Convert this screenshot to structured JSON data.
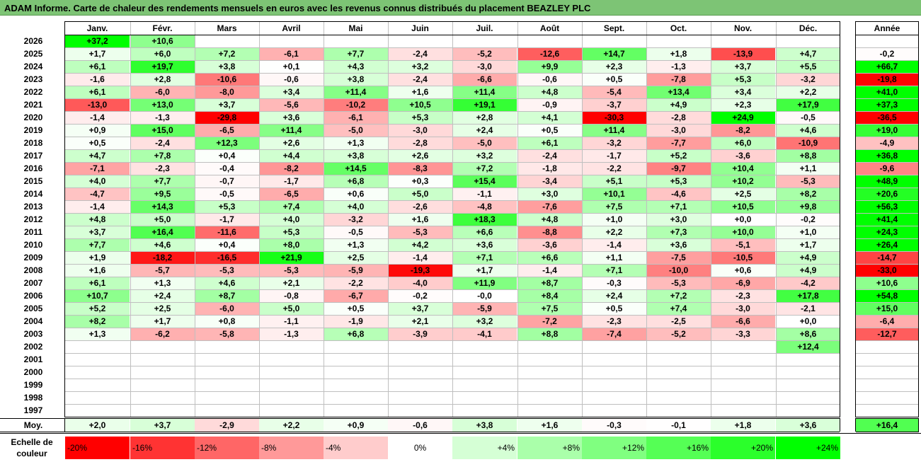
{
  "title": "ADAM Informe. Carte de chaleur des rendements mensuels en euros avec les revenus connus distribués du placement BEAZLEY PLC",
  "chart_data": {
    "type": "heatmap",
    "columns": [
      "Janv.",
      "Févr.",
      "Mars",
      "Avril",
      "Mai",
      "Juin",
      "Juil.",
      "Août",
      "Sept.",
      "Oct.",
      "Nov.",
      "Déc."
    ],
    "year_column": "Année",
    "rows": [
      {
        "year": "2026",
        "months": [
          "+37,2",
          "+10,6",
          "",
          "",
          "",
          "",
          "",
          "",
          "",
          "",
          "",
          ""
        ],
        "annual": ""
      },
      {
        "year": "2025",
        "months": [
          "+1,7",
          "+6,0",
          "+7,2",
          "-6,1",
          "+7,7",
          "-2,4",
          "-5,2",
          "-12,6",
          "+14,7",
          "+1,8",
          "-13,9",
          "+4,7"
        ],
        "annual": "-0,2"
      },
      {
        "year": "2024",
        "months": [
          "+6,1",
          "+19,7",
          "+3,8",
          "+0,1",
          "+4,3",
          "+3,2",
          "-3,0",
          "+9,9",
          "+2,3",
          "-1,3",
          "+3,7",
          "+5,5"
        ],
        "annual": "+66,7"
      },
      {
        "year": "2023",
        "months": [
          "-1,6",
          "+2,8",
          "-10,6",
          "-0,6",
          "+3,8",
          "-2,4",
          "-6,6",
          "-0,6",
          "+0,5",
          "-7,8",
          "+5,3",
          "-3,2"
        ],
        "annual": "-19,8"
      },
      {
        "year": "2022",
        "months": [
          "+6,1",
          "-6,0",
          "-8,0",
          "+3,4",
          "+11,4",
          "+1,6",
          "+11,4",
          "+4,8",
          "-5,4",
          "+13,4",
          "+3,4",
          "+2,2"
        ],
        "annual": "+41,0"
      },
      {
        "year": "2021",
        "months": [
          "-13,0",
          "+13,0",
          "+3,7",
          "-5,6",
          "-10,2",
          "+10,5",
          "+19,1",
          "-0,9",
          "-3,7",
          "+4,9",
          "+2,3",
          "+17,9"
        ],
        "annual": "+37,3"
      },
      {
        "year": "2020",
        "months": [
          "-1,4",
          "-1,3",
          "-29,8",
          "+3,6",
          "-6,1",
          "+5,3",
          "+2,8",
          "+4,1",
          "-30,3",
          "-2,8",
          "+24,9",
          "-0,5"
        ],
        "annual": "-36,5"
      },
      {
        "year": "2019",
        "months": [
          "+0,9",
          "+15,0",
          "-6,5",
          "+11,4",
          "-5,0",
          "-3,0",
          "+2,4",
          "+0,5",
          "+11,4",
          "-3,0",
          "-8,2",
          "+4,6"
        ],
        "annual": "+19,0"
      },
      {
        "year": "2018",
        "months": [
          "+0,5",
          "-2,4",
          "+12,3",
          "+2,6",
          "+1,3",
          "-2,8",
          "-5,0",
          "+6,1",
          "-3,2",
          "-7,7",
          "+6,0",
          "-10,9"
        ],
        "annual": "-4,9"
      },
      {
        "year": "2017",
        "months": [
          "+4,7",
          "+7,8",
          "+0,4",
          "+4,4",
          "+3,8",
          "+2,6",
          "+3,2",
          "-2,4",
          "-1,7",
          "+5,2",
          "-3,6",
          "+8,8"
        ],
        "annual": "+36,8"
      },
      {
        "year": "2016",
        "months": [
          "-7,1",
          "-2,3",
          "-0,4",
          "-8,2",
          "+14,5",
          "-8,3",
          "+7,2",
          "-1,8",
          "-2,2",
          "-9,7",
          "+10,4",
          "+1,1"
        ],
        "annual": "-9,6"
      },
      {
        "year": "2015",
        "months": [
          "+4,0",
          "+7,7",
          "-0,7",
          "-1,7",
          "+6,8",
          "+0,3",
          "+15,4",
          "-3,4",
          "+5,1",
          "+5,3",
          "+10,2",
          "-5,3"
        ],
        "annual": "+48,9"
      },
      {
        "year": "2014",
        "months": [
          "-4,7",
          "+9,5",
          "-0,5",
          "-6,5",
          "+0,6",
          "+5,0",
          "-1,1",
          "+3,0",
          "+10,1",
          "-4,6",
          "+2,5",
          "+8,2"
        ],
        "annual": "+20,6"
      },
      {
        "year": "2013",
        "months": [
          "-1,4",
          "+14,3",
          "+5,3",
          "+7,4",
          "+4,0",
          "-2,6",
          "-4,8",
          "-7,6",
          "+7,5",
          "+7,1",
          "+10,5",
          "+9,8"
        ],
        "annual": "+56,3"
      },
      {
        "year": "2012",
        "months": [
          "+4,8",
          "+5,0",
          "-1,7",
          "+4,0",
          "-3,2",
          "+1,6",
          "+18,3",
          "+4,8",
          "+1,0",
          "+3,0",
          "+0,0",
          "-0,2"
        ],
        "annual": "+41,4"
      },
      {
        "year": "2011",
        "months": [
          "+3,7",
          "+16,4",
          "-11,6",
          "+5,3",
          "-0,5",
          "-5,3",
          "+6,6",
          "-8,8",
          "+2,2",
          "+7,3",
          "+10,0",
          "+1,0"
        ],
        "annual": "+24,3"
      },
      {
        "year": "2010",
        "months": [
          "+7,7",
          "+4,6",
          "+0,4",
          "+8,0",
          "+1,3",
          "+4,2",
          "+3,6",
          "-3,6",
          "-1,4",
          "+3,6",
          "-5,1",
          "+1,7"
        ],
        "annual": "+26,4"
      },
      {
        "year": "2009",
        "months": [
          "+1,9",
          "-18,2",
          "-16,5",
          "+21,9",
          "+2,5",
          "-1,4",
          "+7,1",
          "+6,6",
          "+1,1",
          "-7,5",
          "-10,5",
          "+4,9"
        ],
        "annual": "-14,7"
      },
      {
        "year": "2008",
        "months": [
          "+1,6",
          "-5,7",
          "-5,3",
          "-5,3",
          "-5,9",
          "-19,3",
          "+1,7",
          "-1,4",
          "+7,1",
          "-10,0",
          "+0,6",
          "+4,9"
        ],
        "annual": "-33,0"
      },
      {
        "year": "2007",
        "months": [
          "+6,1",
          "+1,3",
          "+4,6",
          "+2,1",
          "-2,2",
          "-4,0",
          "+11,9",
          "+8,7",
          "-0,3",
          "-5,3",
          "-6,9",
          "-4,2"
        ],
        "annual": "+10,6"
      },
      {
        "year": "2006",
        "months": [
          "+10,7",
          "+2,4",
          "+8,7",
          "-0,8",
          "-6,7",
          "-0,2",
          "-0,0",
          "+8,4",
          "+2,4",
          "+7,2",
          "-2,3",
          "+17,8"
        ],
        "annual": "+54,8"
      },
      {
        "year": "2005",
        "months": [
          "+5,2",
          "+2,5",
          "-6,0",
          "+5,0",
          "+0,5",
          "+3,7",
          "-5,9",
          "+7,5",
          "+0,5",
          "+7,4",
          "-3,0",
          "-2,1"
        ],
        "annual": "+15,0"
      },
      {
        "year": "2004",
        "months": [
          "+8,2",
          "+1,7",
          "+0,8",
          "-1,1",
          "-1,9",
          "+2,1",
          "+3,2",
          "-7,2",
          "-2,3",
          "-2,5",
          "-6,6",
          "+0,0"
        ],
        "annual": "-6,4"
      },
      {
        "year": "2003",
        "months": [
          "+1,3",
          "-6,2",
          "-5,8",
          "-1,3",
          "+6,8",
          "-3,9",
          "-4,1",
          "+8,8",
          "-7,4",
          "-5,2",
          "-3,3",
          "+8,6"
        ],
        "annual": "-12,7"
      },
      {
        "year": "2002",
        "months": [
          "",
          "",
          "",
          "",
          "",
          "",
          "",
          "",
          "",
          "",
          "",
          "+12,4"
        ],
        "annual": ""
      },
      {
        "year": "2001",
        "months": [
          "",
          "",
          "",
          "",
          "",
          "",
          "",
          "",
          "",
          "",
          "",
          ""
        ],
        "annual": ""
      },
      {
        "year": "2000",
        "months": [
          "",
          "",
          "",
          "",
          "",
          "",
          "",
          "",
          "",
          "",
          "",
          ""
        ],
        "annual": ""
      },
      {
        "year": "1999",
        "months": [
          "",
          "",
          "",
          "",
          "",
          "",
          "",
          "",
          "",
          "",
          "",
          ""
        ],
        "annual": ""
      },
      {
        "year": "1998",
        "months": [
          "",
          "",
          "",
          "",
          "",
          "",
          "",
          "",
          "",
          "",
          "",
          ""
        ],
        "annual": ""
      },
      {
        "year": "1997",
        "months": [
          "",
          "",
          "",
          "",
          "",
          "",
          "",
          "",
          "",
          "",
          "",
          ""
        ],
        "annual": ""
      }
    ],
    "average": {
      "label": "Moy.",
      "months": [
        "+2,0",
        "+3,7",
        "-2,9",
        "+2,2",
        "+0,9",
        "-0,6",
        "+3,8",
        "+1,6",
        "-0,3",
        "-0,1",
        "+1,8",
        "+3,6"
      ],
      "annual": "+16,4"
    },
    "color_scale": {
      "label": "Echelle de couleur",
      "steps": [
        {
          "text": "-20%",
          "value": -20
        },
        {
          "text": "-16%",
          "value": -16
        },
        {
          "text": "-12%",
          "value": -12
        },
        {
          "text": "-8%",
          "value": -8
        },
        {
          "text": "-4%",
          "value": -4
        },
        {
          "text": "0%",
          "value": 0
        },
        {
          "text": "+4%",
          "value": 4
        },
        {
          "text": "+8%",
          "value": 8
        },
        {
          "text": "+12%",
          "value": 12
        },
        {
          "text": "+16%",
          "value": 16
        },
        {
          "text": "+20%",
          "value": 20
        },
        {
          "text": "+24%",
          "value": 24
        }
      ]
    },
    "colors": {
      "negative_max": "#ff0000",
      "zero": "#ffffff",
      "positive_max": "#00ff00",
      "title_bar": "#7dc475"
    }
  }
}
